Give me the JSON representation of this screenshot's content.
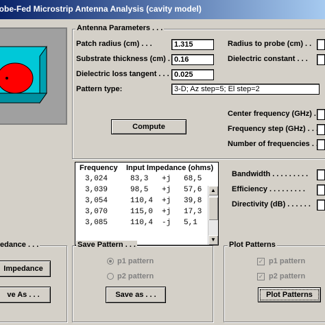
{
  "window": {
    "title": "robe-Fed Microstrip Antenna Analysis (cavity model)"
  },
  "params": {
    "group_label": "Antenna Parameters . . .",
    "patch_radius_label": "Patch radius (cm) . . .",
    "patch_radius_value": "1.315",
    "radius_probe_label": "Radius to probe (cm) . .",
    "substrate_label": "Substrate thickness (cm) . .",
    "substrate_value": "0.16",
    "dielectric_constant_label": "Dielectric constant . . .",
    "loss_tangent_label": "Dielectric loss tangent . . .",
    "loss_tangent_value": "0.025",
    "pattern_type_label": "Pattern type:",
    "pattern_type_value": "3-D; Az step=5; El step=2",
    "center_freq_label": "Center frequency (GHz) . .",
    "freq_step_label": "Frequency step (GHz) . . .",
    "num_freq_label": "Number of frequencies . . ."
  },
  "compute_label": "Compute",
  "impedance_table": {
    "col_frequency": "Frequency",
    "col_impedance": "Input Impedance (ohms)",
    "rows": [
      {
        "freq": "3,024",
        "real": "83,3",
        "sign": "+j",
        "imag": "68,5"
      },
      {
        "freq": "3,039",
        "real": "98,5",
        "sign": "+j",
        "imag": "57,6"
      },
      {
        "freq": "3,054",
        "real": "110,4",
        "sign": "+j",
        "imag": "39,8"
      },
      {
        "freq": "3,070",
        "real": "115,0",
        "sign": "+j",
        "imag": "17,3"
      },
      {
        "freq": "3,085",
        "real": "110,4",
        "sign": "-j",
        "imag": "5,1"
      }
    ]
  },
  "results": {
    "bandwidth_label": "Bandwidth . . . . . . . . .",
    "efficiency_label": "Efficiency . . . . . . . . .",
    "directivity_label": "Directivity (dB) . . . . . ."
  },
  "impedance_group": {
    "label": "edance . . .",
    "impedance_button": "Impedance",
    "save_as_button": "ve As . . ."
  },
  "save_pattern": {
    "label": "Save Pattern . . .",
    "p1": "p1 pattern",
    "p2": "p2 pattern",
    "save_button": "Save as . . ."
  },
  "plot_patterns": {
    "label": "Plot Patterns",
    "p1": "p1 pattern",
    "p2": "p2 pattern",
    "plot_button": "Plot Patterns"
  },
  "colors": {
    "substrate": "#00c8d8",
    "patch": "#ff0000",
    "probe": "#000000"
  }
}
